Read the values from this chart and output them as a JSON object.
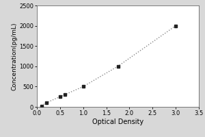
{
  "x_values": [
    0.1,
    0.2,
    0.5,
    0.6,
    1.0,
    1.75,
    3.0
  ],
  "y_values": [
    25,
    100,
    250,
    300,
    500,
    1000,
    2000
  ],
  "xlabel": "Optical Density",
  "ylabel": "Concentration(pg/mL)",
  "xlim": [
    0,
    3.5
  ],
  "ylim": [
    0,
    2500
  ],
  "xticks": [
    0,
    0.5,
    1.0,
    1.5,
    2.0,
    2.5,
    3.0,
    3.5
  ],
  "yticks": [
    0,
    500,
    1000,
    1500,
    2000,
    2500
  ],
  "line_color": "#888888",
  "marker_color": "#222222",
  "figure_background": "#d8d8d8",
  "plot_background": "#ffffff"
}
